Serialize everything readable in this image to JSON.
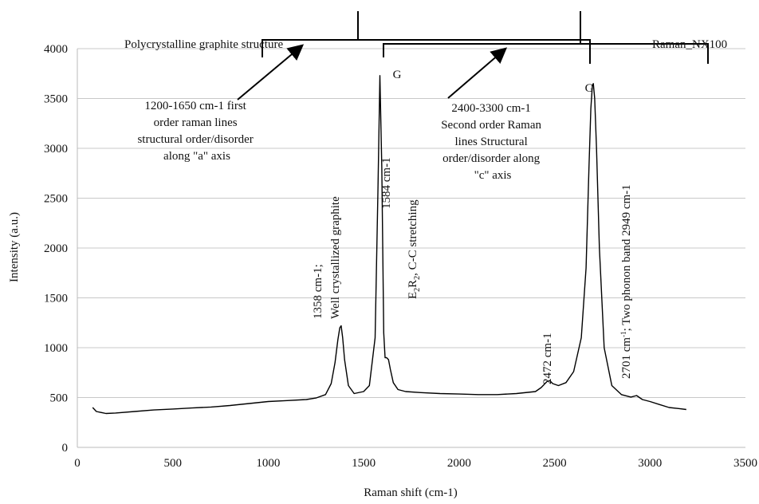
{
  "chart_data": {
    "type": "line",
    "xlabel": "Raman shift (cm-1)",
    "ylabel": "Intensity (a.u.)",
    "xlim": [
      0,
      3500
    ],
    "ylim": [
      0,
      4000
    ],
    "x_ticks": [
      "0",
      "500",
      "1000",
      "1500",
      "2000",
      "2500",
      "3000",
      "3500"
    ],
    "y_ticks": [
      "0",
      "500",
      "1000",
      "1500",
      "2000",
      "2500",
      "3000",
      "3500",
      "4000"
    ],
    "grid": "horizontal",
    "series": [
      {
        "name": "Raman_NX100",
        "color": "#000000",
        "x": [
          80,
          100,
          150,
          200,
          300,
          400,
          500,
          600,
          700,
          800,
          900,
          1000,
          1100,
          1200,
          1250,
          1300,
          1330,
          1350,
          1365,
          1375,
          1382,
          1390,
          1400,
          1420,
          1450,
          1500,
          1530,
          1560,
          1575,
          1585,
          1595,
          1605,
          1612,
          1620,
          1630,
          1640,
          1655,
          1680,
          1720,
          1800,
          1900,
          2000,
          2100,
          2200,
          2300,
          2400,
          2430,
          2460,
          2475,
          2490,
          2520,
          2560,
          2600,
          2640,
          2665,
          2680,
          2690,
          2698,
          2703,
          2710,
          2720,
          2735,
          2760,
          2800,
          2850,
          2900,
          2930,
          2960,
          3000,
          3050,
          3100,
          3150,
          3190
        ],
        "y": [
          400,
          360,
          340,
          345,
          360,
          375,
          385,
          395,
          405,
          420,
          440,
          460,
          470,
          480,
          495,
          530,
          640,
          850,
          1080,
          1200,
          1220,
          1100,
          880,
          620,
          540,
          560,
          620,
          1100,
          2600,
          3730,
          2800,
          1150,
          900,
          900,
          880,
          780,
          650,
          580,
          560,
          550,
          540,
          535,
          530,
          530,
          540,
          560,
          600,
          660,
          670,
          640,
          620,
          650,
          760,
          1100,
          1800,
          2800,
          3400,
          3630,
          3650,
          3500,
          3000,
          2000,
          1000,
          620,
          530,
          505,
          520,
          480,
          460,
          430,
          400,
          390,
          380
        ]
      }
    ],
    "annotations": {
      "peak_g1": "G",
      "peak_g2": "G",
      "first_order": [
        "1200-1650 cm-1 first",
        "order raman lines",
        "structural order/disorder",
        "along \"a\" axis"
      ],
      "second_order": [
        "2400-3300 cm-1",
        "Second order Raman",
        "lines Structural",
        "order/disorder along",
        "\"c\" axis"
      ],
      "polycrystalline": "Polycrystalline graphite structure",
      "raman_label": "Raman_NX100",
      "p1358_a": "1358 cm-1;",
      "p1358_b": "Well crystallized graphite",
      "p1584": "1584 cm-1",
      "e2r2_a": "E",
      "e2r2_sub1": "2",
      "e2r2_b": "R",
      "e2r2_sub2": "2",
      "e2r2_c": ", C-C stretching",
      "p2472": "2472 cm-1",
      "p2701_a": "2701 cm",
      "p2701_sup": "-1",
      "p2701_b": "; Two phonon band 2949 cm-1"
    }
  }
}
